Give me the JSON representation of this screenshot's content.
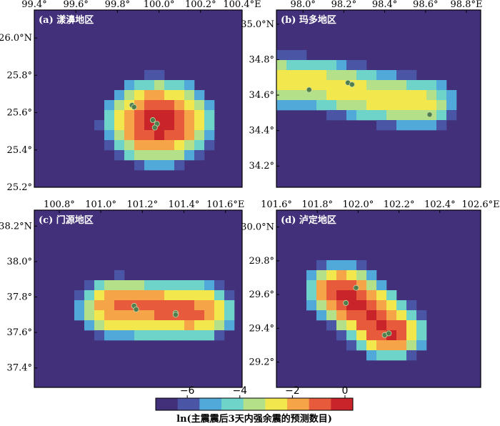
{
  "colors": {
    "background": "#42307a",
    "scale": [
      "#42307a",
      "#4b55a6",
      "#50a9d8",
      "#6ed3c8",
      "#b5e08a",
      "#f2e84e",
      "#f5a448",
      "#e85a3c",
      "#c8242a"
    ],
    "epicenter": "#4e7d4e",
    "epicenter_stroke": "#c8d6a8"
  },
  "chart_data": [
    {
      "type": "heatmap",
      "panel_label": "(a) 漾濞地区",
      "x_ticks": [
        "99.4°",
        "99.6°",
        "99.8°",
        "100.0°",
        "100.2°",
        "100.4°E"
      ],
      "x_tick_values": [
        99.4,
        99.6,
        99.8,
        100.0,
        100.2,
        100.4
      ],
      "y_ticks": [
        "25.2°",
        "25.4°",
        "25.6°",
        "25.8°",
        "26.0°N"
      ],
      "y_tick_values": [
        25.2,
        25.4,
        25.6,
        25.8,
        26.0
      ],
      "xlim": [
        99.4,
        100.4
      ],
      "ylim": [
        25.2,
        26.15
      ],
      "x_axis_position": "top",
      "cluster": {
        "center": [
          100.0,
          25.55
        ],
        "sigma": [
          0.085,
          0.075
        ],
        "peak": 0
      },
      "epicenters": [
        [
          99.87,
          25.64
        ],
        [
          99.88,
          25.63
        ],
        [
          99.97,
          25.56
        ],
        [
          99.99,
          25.54
        ],
        [
          99.98,
          25.52
        ]
      ]
    },
    {
      "type": "heatmap",
      "panel_label": "(b) 玛多地区",
      "x_ticks": [
        "98.0°",
        "98.2°",
        "98.4°",
        "98.6°",
        "98.8°E"
      ],
      "x_tick_values": [
        98.0,
        98.2,
        98.4,
        98.6,
        98.8
      ],
      "y_ticks": [
        "34.2°",
        "34.4°",
        "34.6°",
        "34.8°",
        "35.0°N"
      ],
      "y_tick_values": [
        34.2,
        34.4,
        34.6,
        34.8,
        35.0
      ],
      "xlim": [
        97.87,
        98.87
      ],
      "ylim": [
        34.08,
        35.08
      ],
      "x_axis_position": "top",
      "cluster": {
        "segments": [
          [
            97.88,
            34.68,
            98.1,
            34.66
          ],
          [
            98.1,
            34.66,
            98.3,
            34.6
          ],
          [
            98.3,
            34.6,
            98.58,
            34.55
          ]
        ],
        "sigma": [
          0.07,
          0.06
        ],
        "peak": -2.6
      },
      "epicenters": [
        [
          98.03,
          34.63
        ],
        [
          98.22,
          34.67
        ],
        [
          98.24,
          34.66
        ],
        [
          98.62,
          34.49
        ]
      ]
    },
    {
      "type": "heatmap",
      "panel_label": "(c) 门源地区",
      "x_ticks": [
        "100.8°",
        "101.0°",
        "101.2°",
        "101.4°",
        "101.6°E"
      ],
      "x_tick_values": [
        100.8,
        101.0,
        101.2,
        101.4,
        101.6
      ],
      "y_ticks": [
        "37.4°",
        "37.6°",
        "37.8°",
        "38.0°",
        "38.2°N"
      ],
      "y_tick_values": [
        37.4,
        37.6,
        37.8,
        38.0,
        38.2
      ],
      "xlim": [
        100.68,
        101.68
      ],
      "ylim": [
        37.29,
        38.29
      ],
      "x_axis_position": "top",
      "cluster": {
        "segments": [
          [
            101.08,
            37.74,
            101.45,
            37.72
          ]
        ],
        "sigma": [
          0.07,
          0.06
        ],
        "peak": -1.2
      },
      "epicenters": [
        [
          101.16,
          37.75
        ],
        [
          101.17,
          37.73
        ],
        [
          101.36,
          37.71
        ],
        [
          101.36,
          37.7
        ]
      ]
    },
    {
      "type": "heatmap",
      "panel_label": "(d) 泸定地区",
      "x_ticks": [
        "101.6°",
        "101.8°",
        "102.0°",
        "102.2°",
        "102.4°",
        "102.6°E"
      ],
      "x_tick_values": [
        101.6,
        101.8,
        102.0,
        102.2,
        102.4,
        102.6
      ],
      "y_ticks": [
        "29.2°",
        "29.4°",
        "29.6°",
        "29.8°",
        "30.0°N"
      ],
      "y_tick_values": [
        29.2,
        29.4,
        29.6,
        29.8,
        30.0
      ],
      "xlim": [
        101.6,
        102.6
      ],
      "ylim": [
        29.05,
        30.1
      ],
      "x_axis_position": "top",
      "cluster": {
        "segments": [
          [
            101.92,
            29.62,
            102.15,
            29.38
          ]
        ],
        "sigma": [
          0.06,
          0.055
        ],
        "peak": -0.4
      },
      "epicenters": [
        [
          101.99,
          29.64
        ],
        [
          101.94,
          29.55
        ],
        [
          102.13,
          29.36
        ],
        [
          102.15,
          29.37
        ]
      ]
    }
  ],
  "colorbar": {
    "ticks": [
      "−6",
      "−4",
      "−2",
      "0"
    ],
    "tick_values": [
      -6,
      -4,
      -2,
      0
    ],
    "range": [
      -7.2,
      0.3
    ],
    "label": "ln(主震震后3天内强余震的预测数目)"
  }
}
